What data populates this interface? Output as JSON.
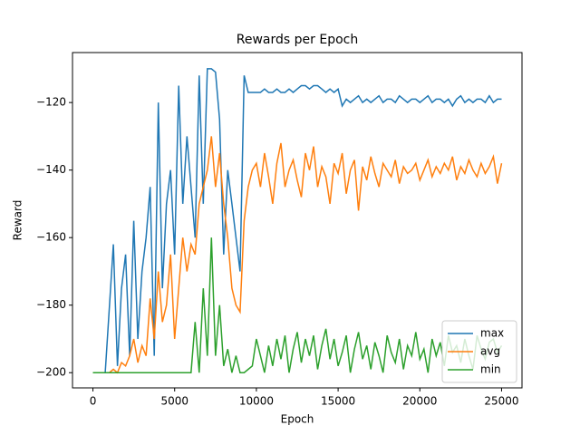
{
  "chart_data": {
    "type": "line",
    "title": "Rewards per Epoch",
    "x_label": "Epoch",
    "y_label": "Reward",
    "x": [
      0,
      250,
      500,
      750,
      1000,
      1250,
      1500,
      1750,
      2000,
      2250,
      2500,
      2750,
      3000,
      3250,
      3500,
      3750,
      4000,
      4250,
      4500,
      4750,
      5000,
      5250,
      5500,
      5750,
      6000,
      6250,
      6500,
      6750,
      7000,
      7250,
      7500,
      7750,
      8000,
      8250,
      8500,
      8750,
      9000,
      9250,
      9500,
      9750,
      10000,
      10250,
      10500,
      10750,
      11000,
      11250,
      11500,
      11750,
      12000,
      12250,
      12500,
      12750,
      13000,
      13250,
      13500,
      13750,
      14000,
      14250,
      14500,
      14750,
      15000,
      15250,
      15500,
      15750,
      16000,
      16250,
      16500,
      16750,
      17000,
      17250,
      17500,
      17750,
      18000,
      18250,
      18500,
      18750,
      19000,
      19250,
      19500,
      19750,
      20000,
      20250,
      20500,
      20750,
      21000,
      21250,
      21500,
      21750,
      22000,
      22250,
      22500,
      22750,
      23000,
      23250,
      23500,
      23750,
      24000,
      24250,
      24500,
      24750,
      25000
    ],
    "series": [
      {
        "name": "max",
        "color": "#1f77b4",
        "values": [
          -200,
          -200,
          -200,
          -200,
          -181,
          -162,
          -198,
          -175,
          -165,
          -195,
          -155,
          -190,
          -170,
          -160,
          -145,
          -195,
          -120,
          -175,
          -150,
          -140,
          -165,
          -115,
          -150,
          -130,
          -145,
          -160,
          -112,
          -150,
          -110,
          -110,
          -111,
          -125,
          -165,
          -140,
          -150,
          -160,
          -170,
          -112,
          -117,
          -117,
          -117,
          -117,
          -116,
          -117,
          -117,
          -116,
          -117,
          -117,
          -116,
          -117,
          -116,
          -115,
          -115,
          -116,
          -115,
          -115,
          -116,
          -117,
          -116,
          -117,
          -116,
          -121,
          -119,
          -120,
          -119,
          -118,
          -120,
          -119,
          -120,
          -119,
          -118,
          -120,
          -119,
          -119,
          -120,
          -118,
          -119,
          -120,
          -119,
          -119,
          -120,
          -119,
          -118,
          -120,
          -119,
          -119,
          -120,
          -119,
          -121,
          -119,
          -118,
          -120,
          -119,
          -120,
          -119,
          -119,
          -120,
          -118,
          -120,
          -119,
          -119
        ]
      },
      {
        "name": "avg",
        "color": "#ff7f0e",
        "values": [
          -200,
          -200,
          -200,
          -200,
          -200,
          -199,
          -200,
          -197,
          -198,
          -195,
          -190,
          -197,
          -192,
          -195,
          -178,
          -190,
          -170,
          -185,
          -180,
          -165,
          -190,
          -175,
          -160,
          -170,
          -162,
          -165,
          -150,
          -145,
          -140,
          -130,
          -145,
          -135,
          -150,
          -160,
          -175,
          -180,
          -182,
          -155,
          -145,
          -140,
          -138,
          -145,
          -135,
          -142,
          -150,
          -138,
          -132,
          -145,
          -140,
          -137,
          -143,
          -148,
          -135,
          -140,
          -133,
          -145,
          -139,
          -142,
          -150,
          -138,
          -141,
          -135,
          -147,
          -140,
          -137,
          -152,
          -139,
          -143,
          -136,
          -141,
          -145,
          -138,
          -140,
          -142,
          -137,
          -144,
          -139,
          -141,
          -140,
          -138,
          -143,
          -140,
          -137,
          -142,
          -139,
          -141,
          -138,
          -140,
          -136,
          -143,
          -139,
          -141,
          -137,
          -140,
          -142,
          -138,
          -141,
          -139,
          -136,
          -144,
          -138
        ]
      },
      {
        "name": "min",
        "color": "#2ca02c",
        "values": [
          -200,
          -200,
          -200,
          -200,
          -200,
          -200,
          -200,
          -200,
          -200,
          -200,
          -200,
          -200,
          -200,
          -200,
          -200,
          -200,
          -200,
          -200,
          -200,
          -200,
          -200,
          -200,
          -200,
          -200,
          -200,
          -185,
          -200,
          -175,
          -195,
          -160,
          -195,
          -180,
          -198,
          -193,
          -200,
          -195,
          -200,
          -200,
          -199,
          -198,
          -190,
          -195,
          -200,
          -192,
          -198,
          -190,
          -196,
          -189,
          -200,
          -193,
          -188,
          -197,
          -190,
          -195,
          -189,
          -199,
          -192,
          -187,
          -196,
          -190,
          -198,
          -194,
          -189,
          -200,
          -193,
          -188,
          -196,
          -192,
          -199,
          -191,
          -195,
          -200,
          -189,
          -194,
          -197,
          -190,
          -199,
          -192,
          -195,
          -188,
          -196,
          -193,
          -200,
          -190,
          -195,
          -191,
          -198,
          -189,
          -194,
          -192,
          -197,
          -190,
          -195,
          -199,
          -189,
          -193,
          -196,
          -191,
          -190,
          -194,
          -192
        ]
      }
    ],
    "xlim": [
      -1250,
      26250
    ],
    "ylim": [
      -204.5,
      -105.2
    ],
    "xticks": [
      0,
      5000,
      10000,
      15000,
      20000,
      25000
    ],
    "yticks": [
      {
        "value": -200,
        "label": "−200"
      },
      {
        "value": -180,
        "label": "−180"
      },
      {
        "value": -160,
        "label": "−160"
      },
      {
        "value": -140,
        "label": "−140"
      },
      {
        "value": -120,
        "label": "−120"
      }
    ],
    "legend": "lower right",
    "grid": false
  }
}
